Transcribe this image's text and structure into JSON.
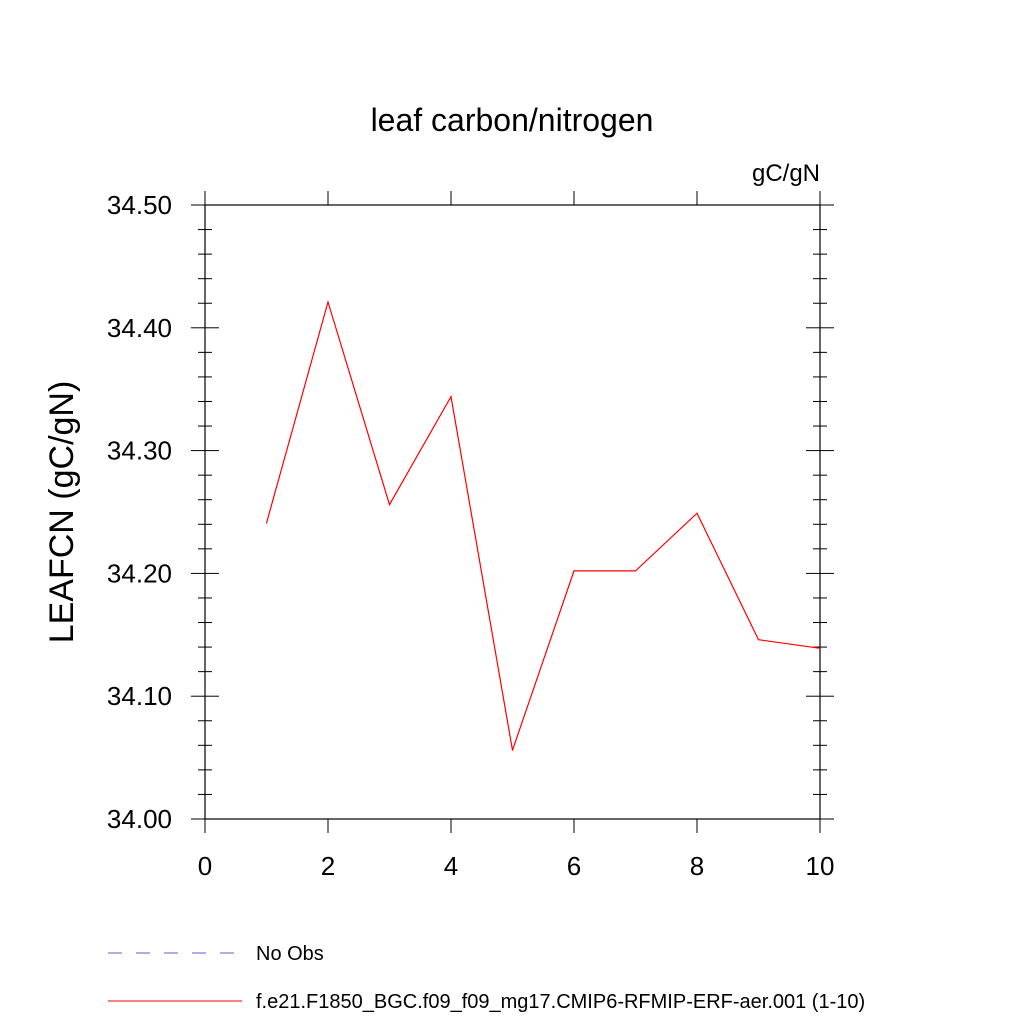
{
  "chart_data": {
    "type": "line",
    "title": "leaf carbon/nitrogen",
    "units_label": "gC/gN",
    "ylabel": "LEAFCN  (gC/gN)",
    "xlabel": "",
    "xlim": [
      0,
      10
    ],
    "ylim": [
      34.0,
      34.5
    ],
    "x_ticks": [
      0,
      2,
      4,
      6,
      8,
      10
    ],
    "x_tick_labels": [
      "0",
      "2",
      "4",
      "6",
      "8",
      "10"
    ],
    "y_ticks": [
      34.0,
      34.1,
      34.2,
      34.3,
      34.4,
      34.5
    ],
    "y_tick_labels": [
      "34.00",
      "34.10",
      "34.20",
      "34.30",
      "34.40",
      "34.50"
    ],
    "grid": false,
    "legend_position": "bottom-left",
    "series": [
      {
        "name": "f.e21.F1850_BGC.f09_f09_mg17.CMIP6-RFMIP-ERF-aer.001 (1-10)",
        "color": "#ff0000",
        "x": [
          1,
          2,
          3,
          4,
          5,
          6,
          7,
          8,
          9,
          10
        ],
        "values": [
          34.241,
          34.421,
          34.256,
          34.344,
          34.056,
          34.202,
          34.202,
          34.249,
          34.146,
          34.139
        ]
      }
    ],
    "legend": [
      {
        "label": "No Obs",
        "color": "#6a5acd",
        "style": "dashed"
      },
      {
        "label": "f.e21.F1850_BGC.f09_f09_mg17.CMIP6-RFMIP-ERF-aer.001 (1-10)",
        "color": "#ff0000",
        "style": "solid"
      }
    ]
  }
}
